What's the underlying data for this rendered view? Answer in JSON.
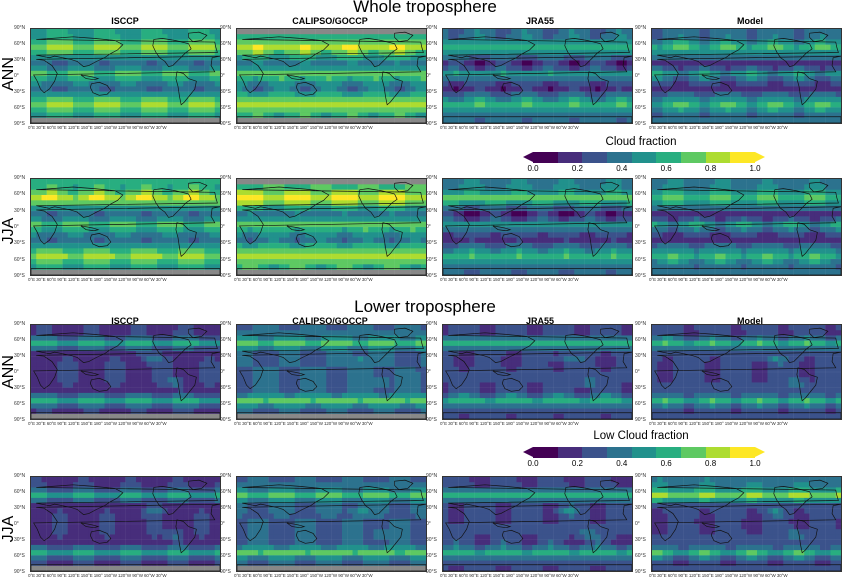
{
  "titles": {
    "whole": "Whole troposphere",
    "lower": "Lower troposphere"
  },
  "columns": [
    "ISCCP",
    "CALIPSO/GOCCP",
    "JRA55",
    "Model"
  ],
  "rows": {
    "ann": "ANN",
    "jja": "JJA"
  },
  "lat_ticks": [
    "90°N",
    "60°N",
    "30°N",
    "0°",
    "30°S",
    "60°S",
    "90°S"
  ],
  "lon_ticks": "0°E  30°E  60°E  90°E  120°E  150°E  180°  150°W  120°W  90°W  60°W  30°W",
  "colorbars": {
    "cloud": {
      "label": "Cloud fraction",
      "ticks": [
        "0.0",
        "0.2",
        "0.4",
        "0.6",
        "0.8",
        "1.0"
      ]
    },
    "low": {
      "label": "Low Cloud fraction",
      "ticks": [
        "0.0",
        "0.2",
        "0.4",
        "0.6",
        "0.8",
        "1.0"
      ]
    }
  },
  "colors": {
    "scale": [
      "#440154",
      "#472d7b",
      "#3b528b",
      "#2c728e",
      "#21918c",
      "#28ae80",
      "#5ec962",
      "#addc30",
      "#fde725"
    ],
    "missing": "#888888"
  }
}
